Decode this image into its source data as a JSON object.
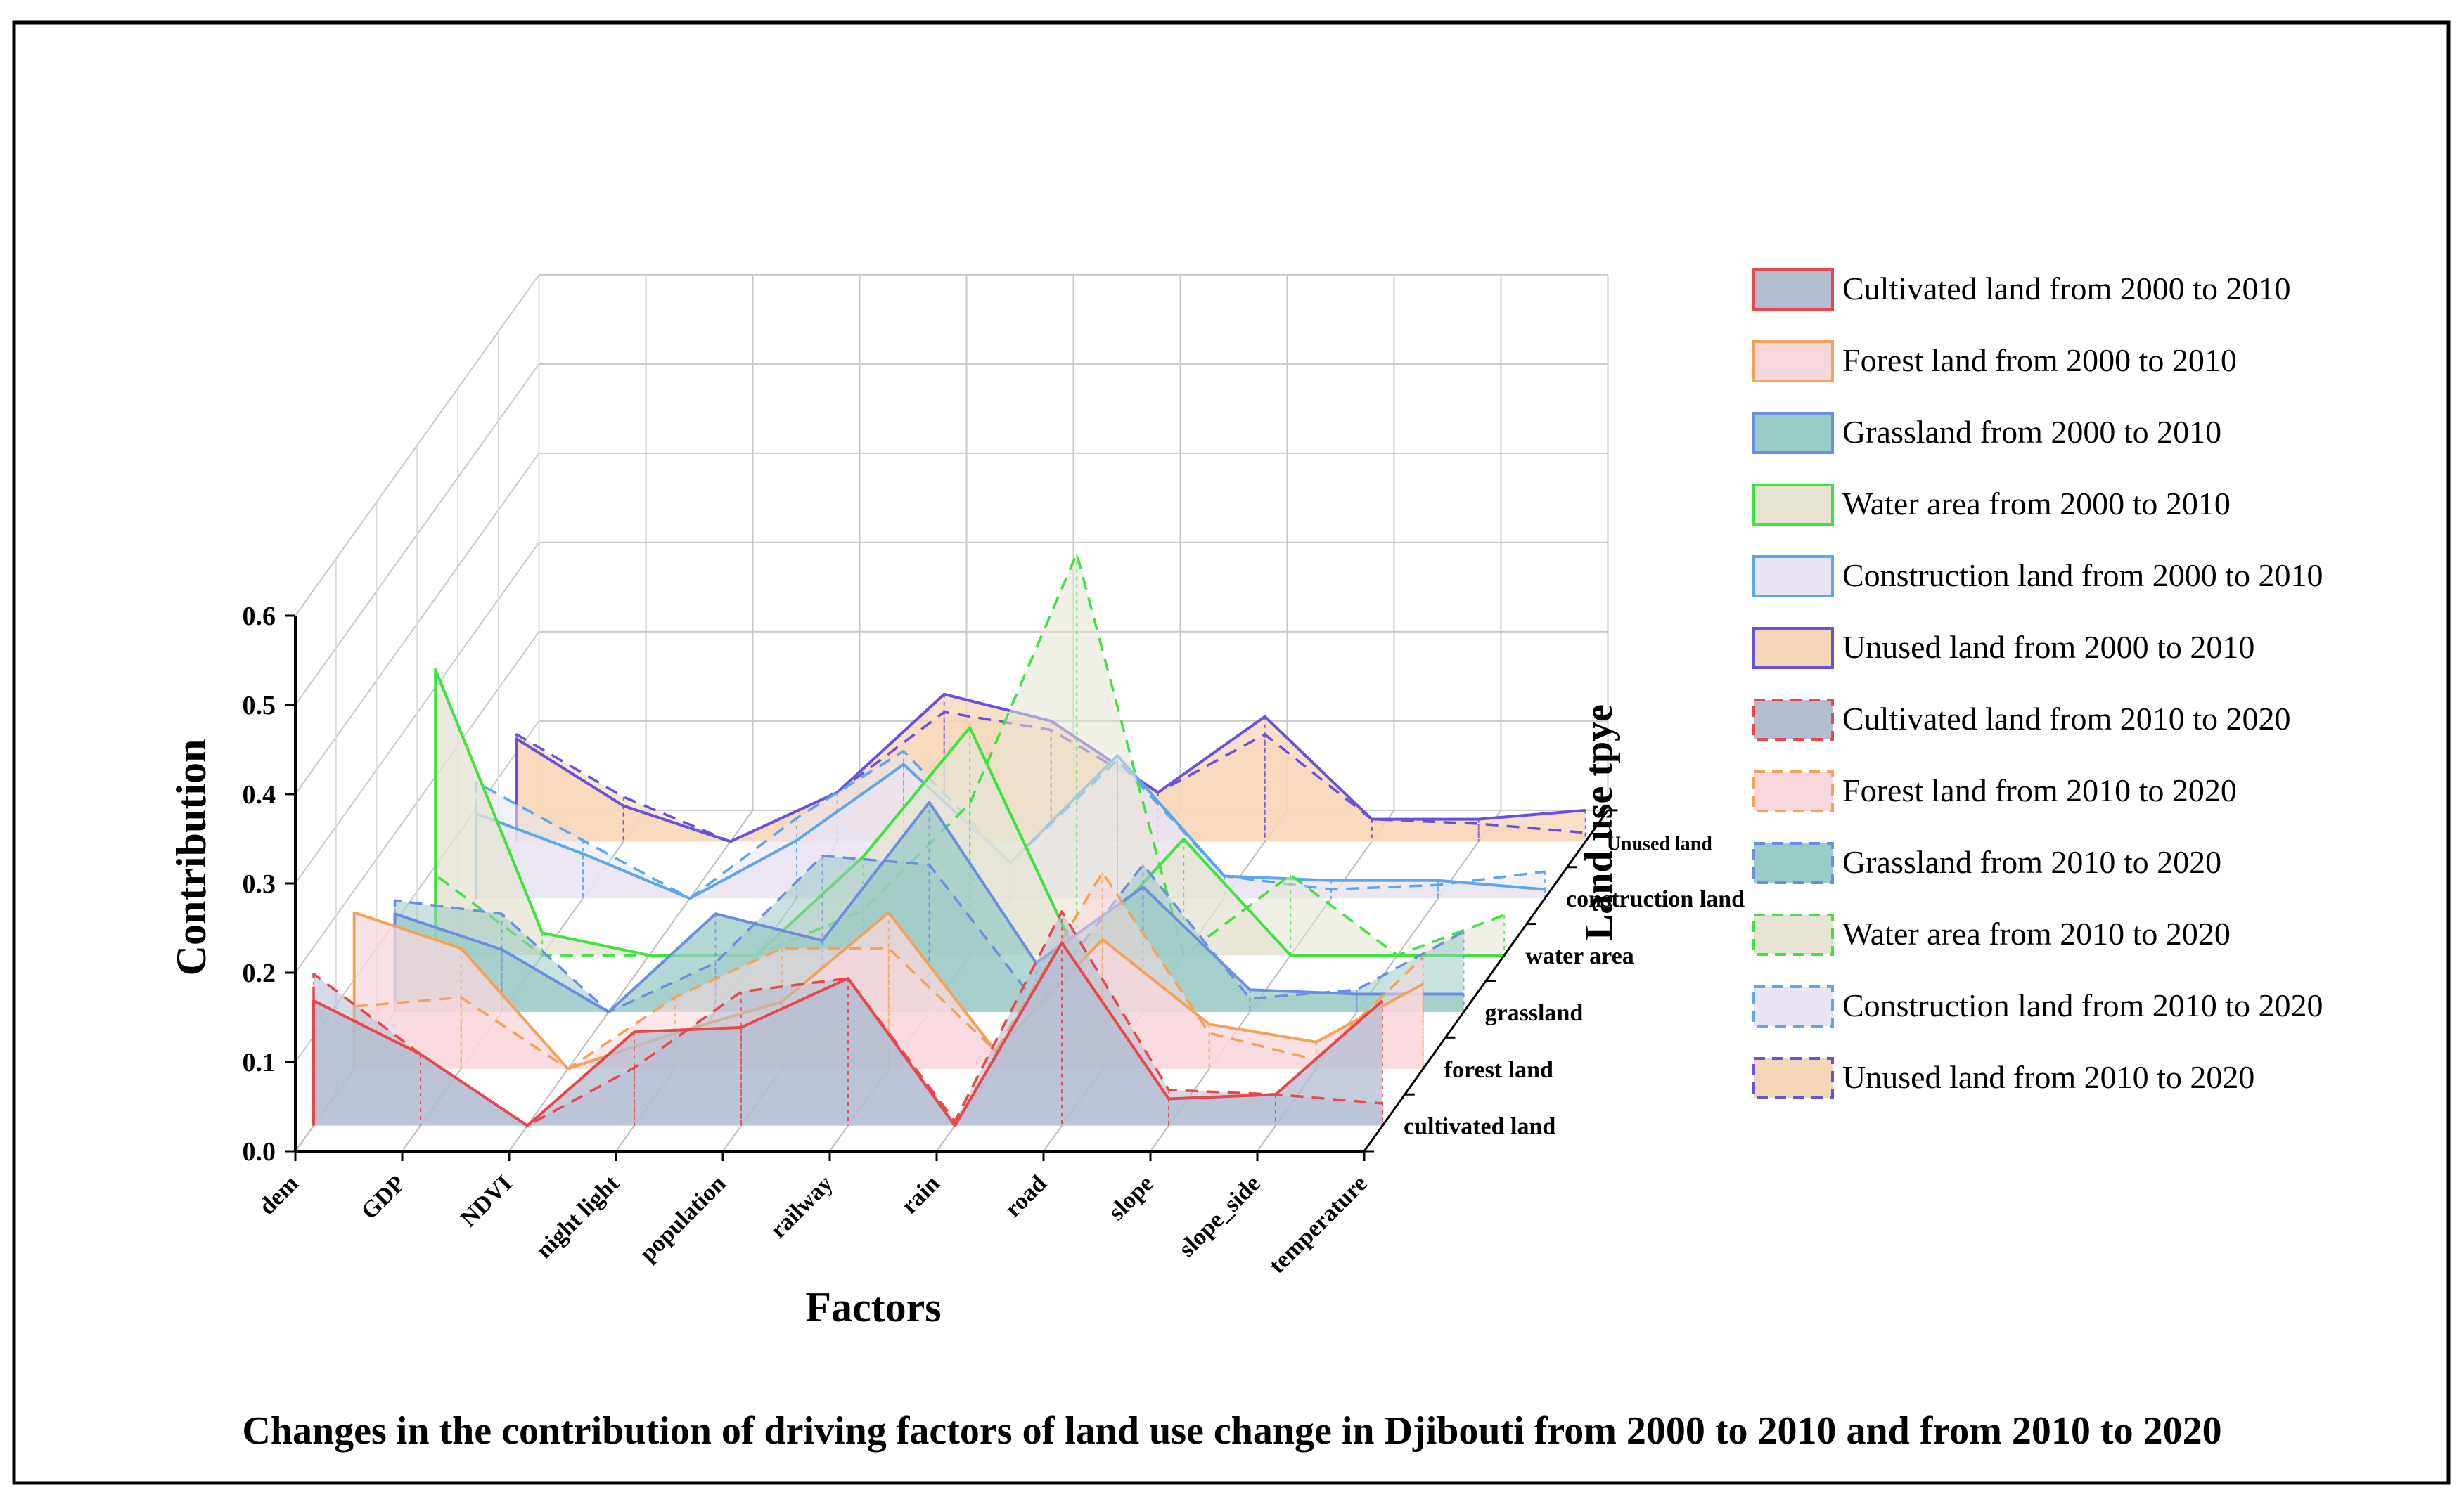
{
  "chart_data": {
    "type": "area",
    "subtype": "3d-waterfall",
    "title": "Changes in the contribution of driving factors of land use change in Djibouti from 2000 to 2010 and from 2010 to 2020",
    "xlabel": "Factors",
    "ylabel": "Contribution",
    "zlabel": "Land use tpye",
    "ylim": [
      0,
      0.6
    ],
    "yticks": [
      "0.0",
      "0.1",
      "0.2",
      "0.3",
      "0.4",
      "0.5",
      "0.6"
    ],
    "categories": [
      "dem",
      "GDP",
      "NDVI",
      "night light",
      "population",
      "railway",
      "rain",
      "road",
      "slope",
      "slope_side",
      "temperature"
    ],
    "layers": [
      "cultivated land",
      "forest land",
      "grassland",
      "water area",
      "construction land",
      "Unused land"
    ],
    "grid": true,
    "series": [
      {
        "name": "Cultivated land from 2000 to 2010",
        "layer": 0,
        "period": "2000-2010",
        "line_color": "#e8474c",
        "fill_color": "#b3bdd2",
        "values": [
          0.14,
          0.08,
          0.0,
          0.105,
          0.11,
          0.165,
          0.0,
          0.205,
          0.03,
          0.035,
          0.14
        ]
      },
      {
        "name": "Forest land from 2000 to 2010",
        "layer": 1,
        "period": "2000-2010",
        "line_color": "#f4a259",
        "fill_color": "#f8d7dc",
        "values": [
          0.175,
          0.135,
          0.0,
          0.04,
          0.075,
          0.175,
          0.02,
          0.145,
          0.05,
          0.03,
          0.095
        ]
      },
      {
        "name": "Grassland from 2000 to 2010",
        "layer": 2,
        "period": "2000-2010",
        "line_color": "#6b8fe0",
        "fill_color": "#9bcbc5",
        "values": [
          0.11,
          0.07,
          0.0,
          0.11,
          0.08,
          0.235,
          0.055,
          0.14,
          0.025,
          0.02,
          0.02
        ]
      },
      {
        "name": "Water area from 2000 to 2010",
        "layer": 3,
        "period": "2000-2010",
        "line_color": "#3ee33e",
        "fill_color": "#e6e3d3",
        "values": [
          0.32,
          0.025,
          0.0,
          0.0,
          0.11,
          0.255,
          0.0,
          0.13,
          0.0,
          0.0,
          0.0
        ]
      },
      {
        "name": "Construction land from 2000 to 2010",
        "layer": 4,
        "period": "2000-2010",
        "line_color": "#5aa7ee",
        "fill_color": "#eae3f1",
        "values": [
          0.095,
          0.05,
          0.0,
          0.065,
          0.15,
          0.04,
          0.16,
          0.025,
          0.02,
          0.02,
          0.01
        ]
      },
      {
        "name": "Unused land from 2000 to 2010",
        "layer": 5,
        "period": "2000-2010",
        "line_color": "#6653d8",
        "fill_color": "#f5d6b6",
        "values": [
          0.115,
          0.04,
          0.0,
          0.055,
          0.165,
          0.135,
          0.055,
          0.14,
          0.025,
          0.025,
          0.035
        ]
      },
      {
        "name": "Cultivated land from 2010 to 2020",
        "layer": 0,
        "period": "2010-2020",
        "line_color": "#e8474c",
        "fill_color": "#b3bdd2",
        "values": [
          0.17,
          0.08,
          0.0,
          0.065,
          0.15,
          0.165,
          0.005,
          0.24,
          0.04,
          0.035,
          0.025
        ]
      },
      {
        "name": "Forest land from 2010 to 2020",
        "layer": 1,
        "period": "2010-2020",
        "line_color": "#f4a259",
        "fill_color": "#f8d7dc",
        "values": [
          0.07,
          0.08,
          0.0,
          0.08,
          0.135,
          0.135,
          0.02,
          0.22,
          0.04,
          0.01,
          0.125
        ]
      },
      {
        "name": "Grassland from 2010 to 2020",
        "layer": 2,
        "period": "2010-2020",
        "line_color": "#6b8fe0",
        "fill_color": "#9bcbc5",
        "values": [
          0.125,
          0.11,
          0.0,
          0.055,
          0.175,
          0.165,
          0.01,
          0.165,
          0.015,
          0.025,
          0.09
        ]
      },
      {
        "name": "Water area from 2010 to 2020",
        "layer": 3,
        "period": "2010-2020",
        "line_color": "#3ee33e",
        "fill_color": "#e6e3d3",
        "values": [
          0.09,
          0.0,
          0.0,
          0.0,
          0.05,
          0.17,
          0.45,
          0.0,
          0.09,
          0.0,
          0.045
        ]
      },
      {
        "name": "Construction land from 2010 to 2020",
        "layer": 4,
        "period": "2010-2020",
        "line_color": "#5aa7ee",
        "fill_color": "#eae3f1",
        "values": [
          0.13,
          0.065,
          0.0,
          0.09,
          0.165,
          0.04,
          0.155,
          0.025,
          0.01,
          0.015,
          0.03
        ]
      },
      {
        "name": "Unused land from 2010 to 2020",
        "layer": 5,
        "period": "2010-2020",
        "line_color": "#6653d8",
        "fill_color": "#f5d6b6",
        "values": [
          0.12,
          0.05,
          0.0,
          0.055,
          0.145,
          0.125,
          0.055,
          0.12,
          0.025,
          0.02,
          0.01
        ]
      }
    ]
  }
}
